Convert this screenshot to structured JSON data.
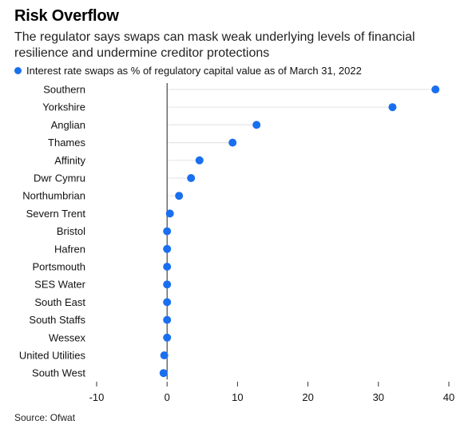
{
  "title": "Risk Overflow",
  "subtitle": "The regulator says swaps can mask weak underlying levels of financial resilience and undermine creditor protections",
  "source": "Source: Ofwat",
  "colors": {
    "dot": "#1a6ff0",
    "stem": "#e6e6e6",
    "zero_line": "#222222",
    "axis": "#333333"
  },
  "chart_data": {
    "type": "scatter",
    "title": "Risk Overflow",
    "legend": {
      "placement": "top-left"
    },
    "series": [
      {
        "name": "Interest rate swaps as % of regulatory capital value as of March 31, 2022",
        "categories": [
          "Southern",
          "Yorkshire",
          "Anglian",
          "Thames",
          "Affinity",
          "Dwr Cymru",
          "Northumbrian",
          "Severn Trent",
          "Bristol",
          "Hafren",
          "Portsmouth",
          "SES Water",
          "South East",
          "South Staffs",
          "Wessex",
          "United Utilities",
          "South West"
        ],
        "values": [
          38.1,
          32.0,
          12.7,
          9.3,
          4.6,
          3.4,
          1.7,
          0.4,
          0.0,
          0.0,
          0.0,
          0.0,
          0.0,
          0.0,
          0.0,
          -0.4,
          -0.5
        ]
      }
    ],
    "categories": [
      "Southern",
      "Yorkshire",
      "Anglian",
      "Thames",
      "Affinity",
      "Dwr Cymru",
      "Northumbrian",
      "Severn Trent",
      "Bristol",
      "Hafren",
      "Portsmouth",
      "SES Water",
      "South East",
      "South Staffs",
      "Wessex",
      "United Utilities",
      "South West"
    ],
    "x_ticks": [
      -10,
      0,
      10,
      20,
      30,
      40
    ],
    "x_tick_labels": [
      "-10",
      "0",
      "10",
      "20",
      "30",
      "40"
    ],
    "xlim": [
      -10,
      40
    ],
    "xlabel": "",
    "ylabel": "",
    "grid": false
  }
}
